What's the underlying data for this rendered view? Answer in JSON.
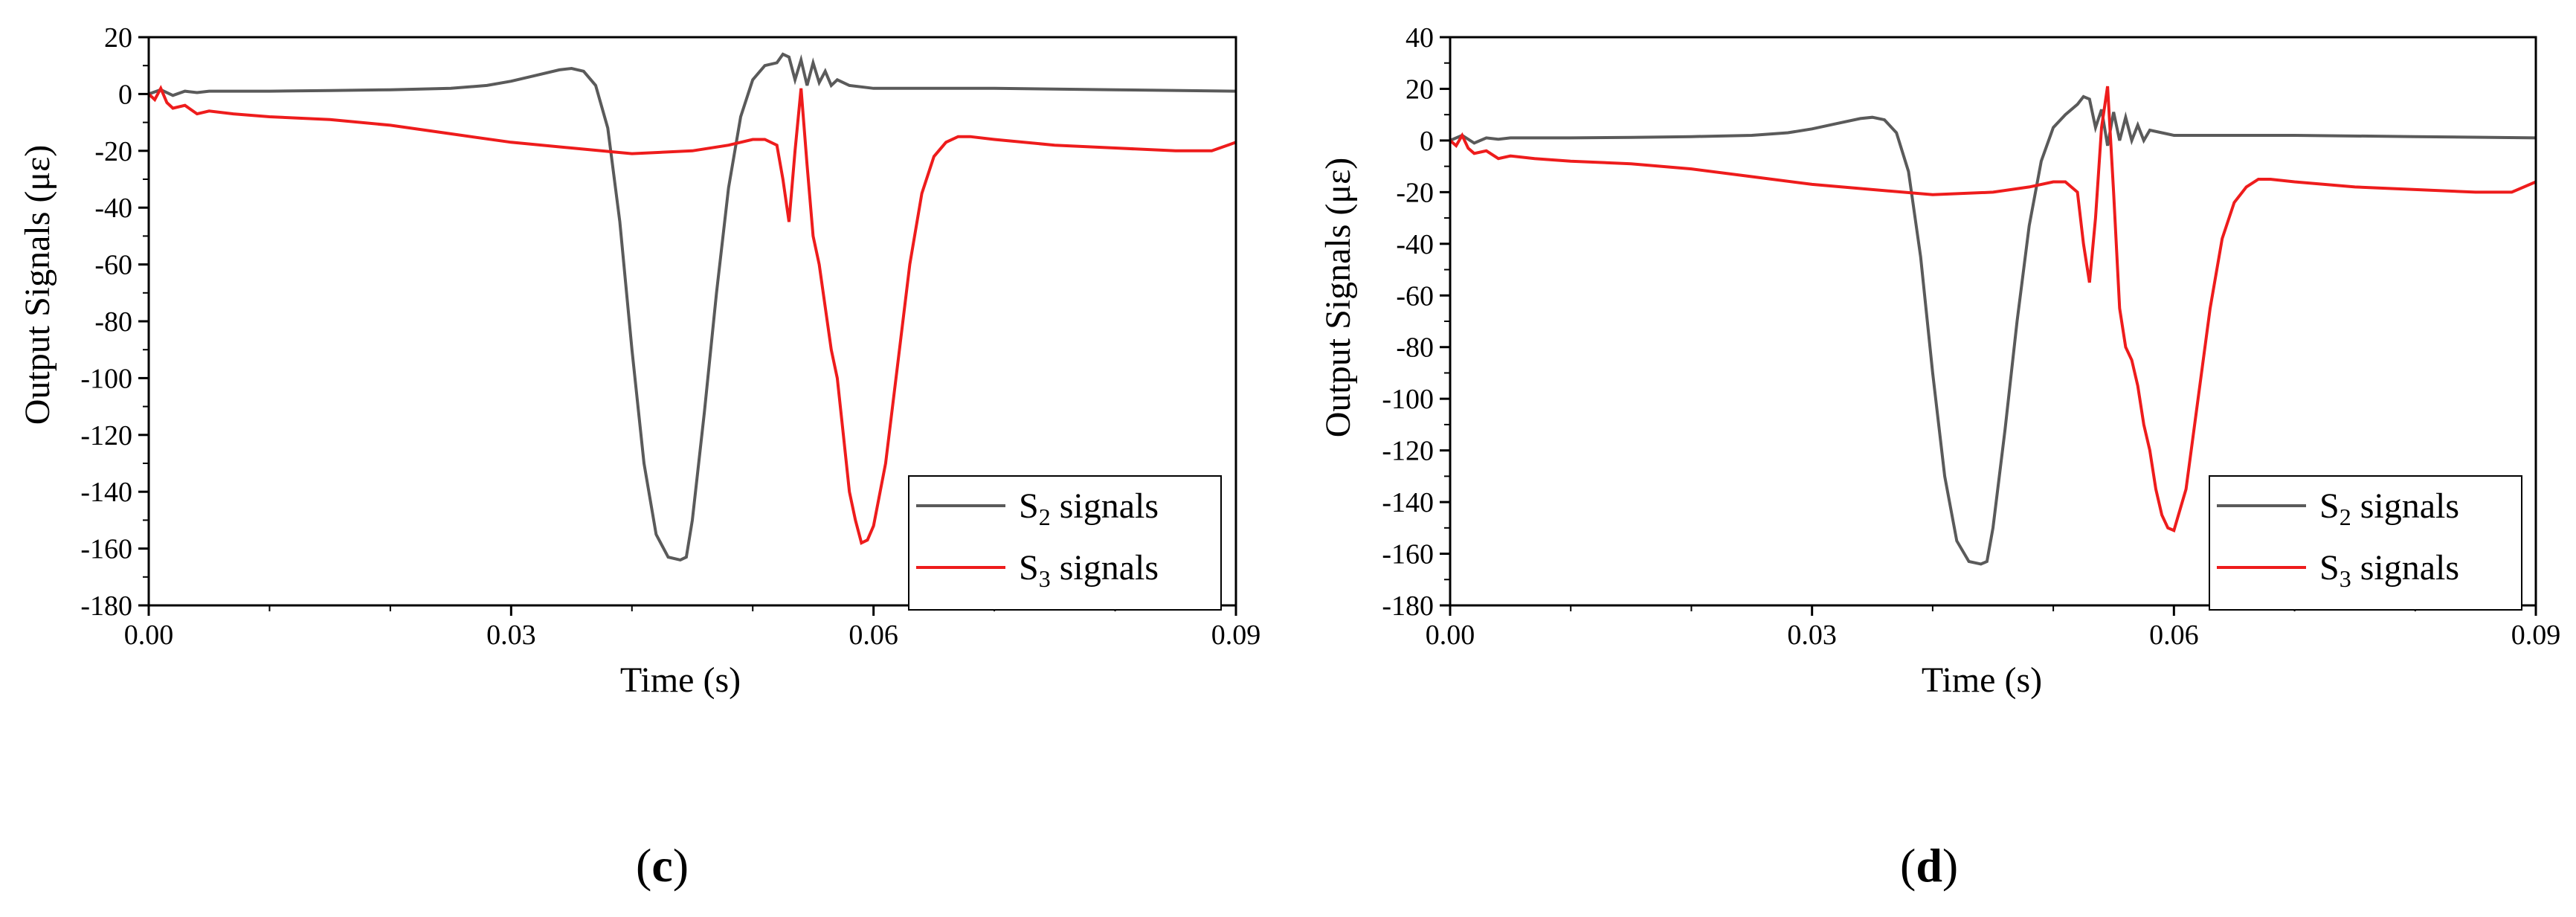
{
  "colors": {
    "s2": "#5a5a5a",
    "s3": "#ee1c1c",
    "axis": "#000000"
  },
  "chart_data": [
    {
      "type": "line",
      "panel_label": "c",
      "xlabel": "Time (s)",
      "ylabel": "Output Signals (με)",
      "xlim": [
        0,
        0.09
      ],
      "ylim": [
        -180,
        20
      ],
      "xticks": [
        0,
        0.03,
        0.06,
        0.09
      ],
      "xtick_labels": [
        "0.00",
        "0.03",
        "0.06",
        "0.09"
      ],
      "yticks": [
        20,
        0,
        -20,
        -40,
        -60,
        -80,
        -100,
        -120,
        -140,
        -160,
        -180
      ],
      "ytick_labels": [
        "20",
        "0",
        "-20",
        "-40",
        "-60",
        "-80",
        "-100",
        "-120",
        "-140",
        "-160",
        "-180"
      ],
      "legend_position": "bottom-right",
      "series": [
        {
          "name": "S2 signals",
          "legend_main": "S",
          "legend_sub": "2",
          "legend_rest": " signals",
          "color_key": "s2",
          "x": [
            0,
            0.001,
            0.002,
            0.003,
            0.004,
            0.005,
            0.01,
            0.015,
            0.02,
            0.025,
            0.028,
            0.03,
            0.032,
            0.034,
            0.035,
            0.036,
            0.037,
            0.038,
            0.039,
            0.04,
            0.041,
            0.042,
            0.043,
            0.044,
            0.0445,
            0.045,
            0.046,
            0.047,
            0.048,
            0.049,
            0.05,
            0.051,
            0.052,
            0.0525,
            0.053,
            0.0535,
            0.054,
            0.0545,
            0.055,
            0.0555,
            0.056,
            0.0565,
            0.057,
            0.058,
            0.06,
            0.065,
            0.07,
            0.08,
            0.09
          ],
          "y": [
            0,
            1.5,
            -0.5,
            1,
            0.5,
            1,
            1,
            1.2,
            1.5,
            2,
            3,
            4.5,
            6.5,
            8.5,
            9,
            8,
            3,
            -12,
            -45,
            -90,
            -130,
            -155,
            -163,
            -164,
            -163,
            -150,
            -112,
            -70,
            -33,
            -8,
            5,
            10,
            11,
            14,
            13,
            5,
            12,
            3,
            11,
            4,
            8,
            3,
            5,
            3,
            2,
            2,
            2,
            1.5,
            1
          ]
        },
        {
          "name": "S3 signals",
          "legend_main": "S",
          "legend_sub": "3",
          "legend_rest": " signals",
          "color_key": "s3",
          "x": [
            0,
            0.0005,
            0.001,
            0.0015,
            0.002,
            0.003,
            0.004,
            0.005,
            0.007,
            0.01,
            0.015,
            0.02,
            0.025,
            0.03,
            0.035,
            0.04,
            0.045,
            0.048,
            0.05,
            0.051,
            0.052,
            0.0525,
            0.053,
            0.0535,
            0.054,
            0.0545,
            0.055,
            0.0555,
            0.056,
            0.0565,
            0.057,
            0.0575,
            0.058,
            0.0585,
            0.059,
            0.0595,
            0.06,
            0.061,
            0.062,
            0.063,
            0.064,
            0.065,
            0.066,
            0.067,
            0.068,
            0.07,
            0.075,
            0.08,
            0.085,
            0.088,
            0.09
          ],
          "y": [
            0,
            -2,
            2,
            -3,
            -5,
            -4,
            -7,
            -6,
            -7,
            -8,
            -9,
            -11,
            -14,
            -17,
            -19,
            -21,
            -20,
            -18,
            -16,
            -16,
            -18,
            -30,
            -45,
            -20,
            2,
            -25,
            -50,
            -60,
            -75,
            -90,
            -100,
            -120,
            -140,
            -150,
            -158,
            -157,
            -152,
            -130,
            -95,
            -60,
            -35,
            -22,
            -17,
            -15,
            -15,
            -16,
            -18,
            -19,
            -20,
            -20,
            -17
          ]
        }
      ]
    },
    {
      "type": "line",
      "panel_label": "d",
      "xlabel": "Time (s)",
      "ylabel": "Output Signals (με)",
      "xlim": [
        0,
        0.09
      ],
      "ylim": [
        -180,
        40
      ],
      "xticks": [
        0,
        0.03,
        0.06,
        0.09
      ],
      "xtick_labels": [
        "0.00",
        "0.03",
        "0.06",
        "0.09"
      ],
      "yticks": [
        40,
        20,
        0,
        -20,
        -40,
        -60,
        -80,
        -100,
        -120,
        -140,
        -160,
        -180
      ],
      "ytick_labels": [
        "40",
        "20",
        "0",
        "-20",
        "-40",
        "-60",
        "-80",
        "-100",
        "-120",
        "-140",
        "-160",
        "-180"
      ],
      "legend_position": "bottom-right",
      "series": [
        {
          "name": "S2 signals",
          "legend_main": "S",
          "legend_sub": "2",
          "legend_rest": " signals",
          "color_key": "s2",
          "x": [
            0,
            0.001,
            0.002,
            0.003,
            0.004,
            0.005,
            0.01,
            0.015,
            0.02,
            0.025,
            0.028,
            0.03,
            0.032,
            0.034,
            0.035,
            0.036,
            0.037,
            0.038,
            0.039,
            0.04,
            0.041,
            0.042,
            0.043,
            0.044,
            0.0445,
            0.045,
            0.046,
            0.047,
            0.048,
            0.049,
            0.05,
            0.051,
            0.052,
            0.0525,
            0.053,
            0.0535,
            0.054,
            0.0545,
            0.055,
            0.0555,
            0.056,
            0.0565,
            0.057,
            0.0575,
            0.058,
            0.059,
            0.06,
            0.065,
            0.07,
            0.08,
            0.09
          ],
          "y": [
            0,
            2,
            -1,
            1,
            0.5,
            1,
            1,
            1.2,
            1.5,
            2,
            3,
            4.5,
            6.5,
            8.5,
            9,
            8,
            3,
            -12,
            -45,
            -90,
            -130,
            -155,
            -163,
            -164,
            -163,
            -150,
            -112,
            -70,
            -33,
            -8,
            5,
            10,
            14,
            17,
            16,
            5,
            12,
            -2,
            11,
            0,
            9,
            0,
            6,
            0,
            4,
            3,
            2,
            2,
            2,
            1.5,
            1
          ]
        },
        {
          "name": "S3 signals",
          "legend_main": "S",
          "legend_sub": "3",
          "legend_rest": " signals",
          "color_key": "s3",
          "x": [
            0,
            0.0005,
            0.001,
            0.0015,
            0.002,
            0.003,
            0.004,
            0.005,
            0.007,
            0.01,
            0.015,
            0.02,
            0.025,
            0.03,
            0.035,
            0.04,
            0.045,
            0.048,
            0.05,
            0.051,
            0.052,
            0.0525,
            0.053,
            0.0535,
            0.054,
            0.0545,
            0.055,
            0.0555,
            0.056,
            0.0565,
            0.057,
            0.0575,
            0.058,
            0.0585,
            0.059,
            0.0595,
            0.06,
            0.061,
            0.062,
            0.063,
            0.064,
            0.065,
            0.066,
            0.067,
            0.068,
            0.07,
            0.075,
            0.08,
            0.085,
            0.088,
            0.09
          ],
          "y": [
            0,
            -2,
            2,
            -3,
            -5,
            -4,
            -7,
            -6,
            -7,
            -8,
            -9,
            -11,
            -14,
            -17,
            -19,
            -21,
            -20,
            -18,
            -16,
            -16,
            -20,
            -40,
            -55,
            -30,
            5,
            21,
            -20,
            -65,
            -80,
            -85,
            -95,
            -110,
            -120,
            -135,
            -145,
            -150,
            -151,
            -135,
            -100,
            -65,
            -38,
            -24,
            -18,
            -15,
            -15,
            -16,
            -18,
            -19,
            -20,
            -20,
            -16
          ]
        }
      ]
    }
  ]
}
